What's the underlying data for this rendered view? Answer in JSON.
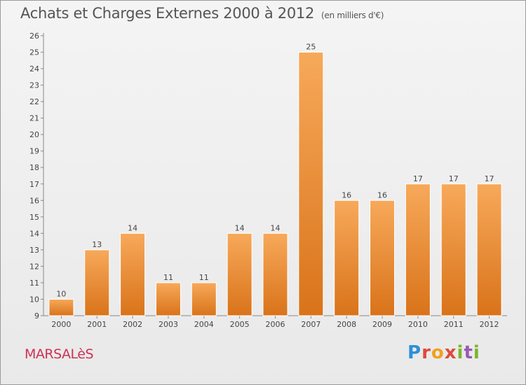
{
  "chart_data": {
    "type": "bar",
    "title": "Achats et Charges Externes 2000 à 2012",
    "subtitle": "(en milliers d'€)",
    "categories": [
      "2000",
      "2001",
      "2002",
      "2003",
      "2004",
      "2005",
      "2006",
      "2007",
      "2008",
      "2009",
      "2010",
      "2011",
      "2012"
    ],
    "values": [
      10,
      13,
      14,
      11,
      11,
      14,
      14,
      25,
      16,
      16,
      17,
      17,
      17
    ],
    "ylim": [
      9,
      26
    ],
    "yticks": [
      9,
      10,
      11,
      12,
      13,
      14,
      15,
      16,
      17,
      18,
      19,
      20,
      21,
      22,
      23,
      24,
      25,
      26
    ],
    "grid": false,
    "bar_color": "#f0902a"
  },
  "footer": {
    "town": "MARSALèS",
    "logo": "Proxiti"
  }
}
